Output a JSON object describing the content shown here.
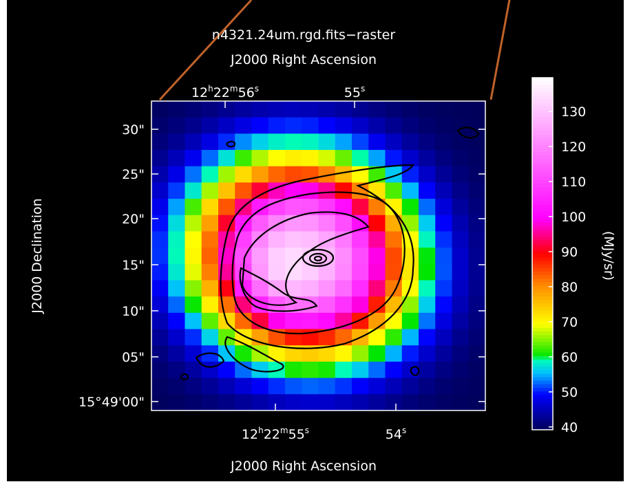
{
  "title": "n4321.24um.rgd.fits−raster",
  "top_axis": {
    "label": "J2000 Right Ascension",
    "ticks": [
      [
        "12",
        "h",
        "22",
        "m",
        "56",
        "s"
      ],
      [
        "55",
        "s"
      ]
    ]
  },
  "bottom_axis": {
    "label": "J2000 Right Ascension",
    "ticks": [
      [
        "12",
        "h",
        "22",
        "m",
        "55",
        "s"
      ],
      [
        "54",
        "s"
      ]
    ]
  },
  "left_axis": {
    "label": "J2000 Declination",
    "ticks": [
      "30\"",
      "25\"",
      "20\"",
      "15\"",
      "10\"",
      "05\"",
      "15°49'00\""
    ]
  },
  "colorbar": {
    "label": "(MJy/sr)",
    "lim": [
      39.2,
      139.6
    ],
    "ticks": [
      40,
      50,
      60,
      70,
      80,
      90,
      100,
      110,
      120,
      130
    ]
  }
}
